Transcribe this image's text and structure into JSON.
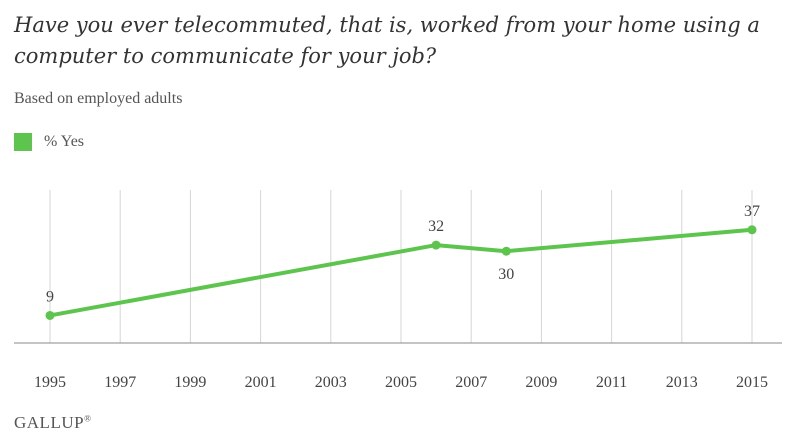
{
  "title": "Have you ever telecommuted, that is, worked from your home using a computer to communicate for your job?",
  "subtitle": "Based on employed adults",
  "legend": {
    "label": "% Yes"
  },
  "colors": {
    "series": "#5dc44e",
    "grid": "#d6d6d6",
    "axis": "#888888"
  },
  "footer": {
    "logo": "GALLUP",
    "logo_mark": "®"
  },
  "chart_data": {
    "type": "line",
    "x_ticks": [
      "1995",
      "1997",
      "1999",
      "2001",
      "2003",
      "2005",
      "2007",
      "2009",
      "2011",
      "2013",
      "2015"
    ],
    "xlim": [
      1995,
      2015
    ],
    "ylim": [
      0,
      50
    ],
    "grid": "vertical",
    "series": [
      {
        "name": "% Yes",
        "points": [
          {
            "x": 1995,
            "y": 9
          },
          {
            "x": 2006,
            "y": 32
          },
          {
            "x": 2008,
            "y": 30
          },
          {
            "x": 2015,
            "y": 37
          }
        ],
        "labels": [
          "9",
          "32",
          "30",
          "37"
        ]
      }
    ]
  }
}
